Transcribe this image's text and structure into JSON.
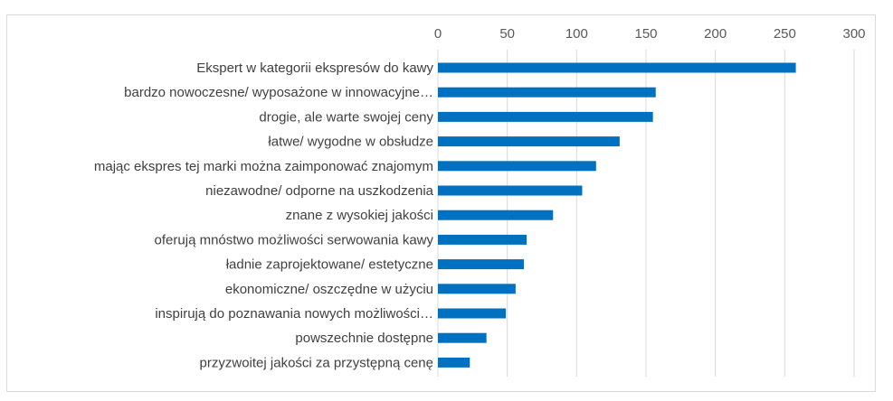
{
  "chart_data": {
    "type": "bar",
    "orientation": "horizontal",
    "title": "",
    "xlabel": "",
    "ylabel": "",
    "xlim": [
      0,
      300
    ],
    "x_ticks": [
      "0",
      "50",
      "100",
      "150",
      "200",
      "250",
      "300"
    ],
    "x_axis_position": "top",
    "grid": true,
    "legend": "none",
    "bar_color": "#0070C0",
    "categories": [
      "Ekspert w kategorii ekspresów do kawy",
      "bardzo nowoczesne/ wyposażone w innowacyjne…",
      "drogie, ale warte swojej ceny",
      "łatwe/ wygodne w obsłudze",
      "mając ekspres tej marki można zaimponować znajomym",
      "niezawodne/ odporne na uszkodzenia",
      "znane z wysokiej jakości",
      "oferują mnóstwo możliwości serwowania kawy",
      "ładnie zaprojektowane/ estetyczne",
      "ekonomiczne/ oszczędne w użyciu",
      "inspirują do poznawania nowych możliwości…",
      "powszechnie dostępne",
      "przyzwoitej jakości za przystępną cenę"
    ],
    "values": [
      258,
      157,
      155,
      131,
      114,
      104,
      83,
      64,
      62,
      56,
      49,
      35,
      23
    ]
  }
}
